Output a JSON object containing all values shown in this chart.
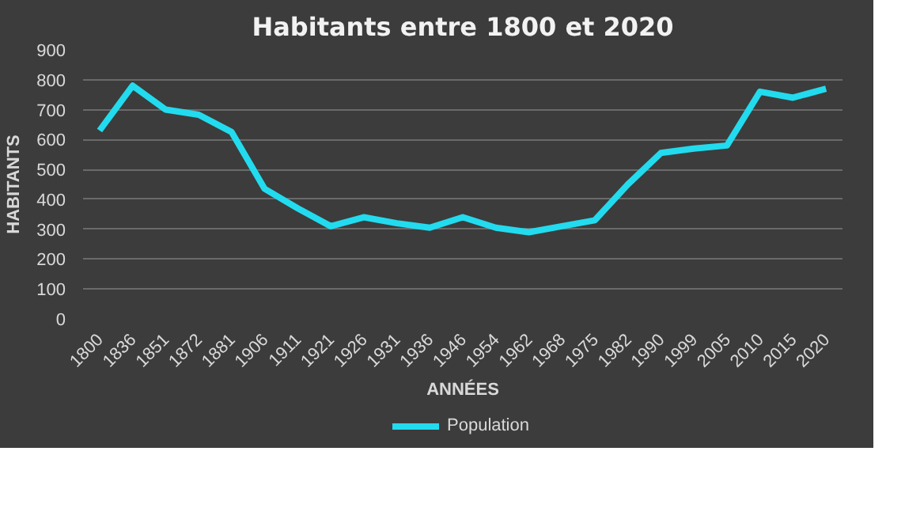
{
  "chart_data": {
    "type": "line",
    "title": "Habitants entre 1800 et 2020",
    "xlabel": "ANNÉES",
    "ylabel": "HABITANTS",
    "categories": [
      "1800",
      "1836",
      "1851",
      "1872",
      "1881",
      "1906",
      "1911",
      "1921",
      "1926",
      "1931",
      "1936",
      "1946",
      "1954",
      "1962",
      "1968",
      "1975",
      "1982",
      "1990",
      "1999",
      "2005",
      "2010",
      "2015",
      "2020"
    ],
    "series": [
      {
        "name": "Population",
        "color": "#22dbee",
        "values": [
          630,
          780,
          700,
          683,
          625,
          435,
          370,
          310,
          340,
          320,
          305,
          340,
          305,
          290,
          310,
          330,
          450,
          555,
          570,
          580,
          760,
          740,
          770
        ]
      }
    ],
    "ylim": [
      0,
      900
    ],
    "yticks": [
      0,
      100,
      200,
      300,
      400,
      500,
      600,
      700,
      800,
      900
    ],
    "grid": "y",
    "legend": "bottom",
    "marker": "none",
    "line_style": "solid"
  }
}
